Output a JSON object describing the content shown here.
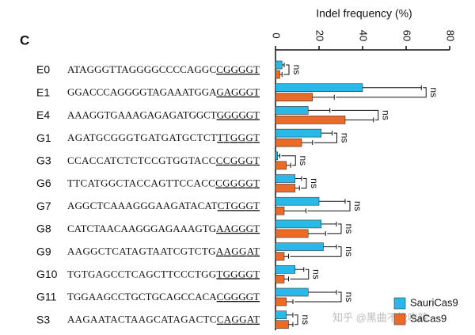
{
  "panel_label": "C",
  "watermark": "知乎 @黑曲不能吃辣",
  "chart_data": {
    "type": "bar",
    "orientation": "horizontal",
    "xlabel": "Indel frequency (%)",
    "categories": [
      "E0",
      "E1",
      "E4",
      "G1",
      "G3",
      "G6",
      "G7",
      "G8",
      "G9",
      "G10",
      "G11",
      "S3"
    ],
    "sequences": [
      "ATAGGGTTAGGGGCCCCAGGC",
      "GGACCCAGGGGTAGAAATGGA",
      "AAAGGTGAAAGAGAGATGGCT",
      "AGATGCGGGTGATGATGCTCT",
      "CCACCATCTCTCCGTGGTACC",
      "TTCATGGCTACCAGTTCCACC",
      "AGGCTCAAAGGGAAGATACAT",
      "CATCTAACAAGGGAGAAAGTG",
      "AAGGCTCATAGTAATCGTCTG",
      "TGTGAGCCTCAGCTTCCCTGG",
      "TGGAAGCCTGCTGCAGCCACA",
      "AAGAATACTAAGCATAGACTC"
    ],
    "pams": [
      "CGGGGT",
      "GAGGGT",
      "GGGGGT",
      "TTGGGT",
      "CCGGGT",
      "CGGGGT",
      "CTGGGT",
      "AAGGGT",
      "AAGGAT",
      "TGGGGT",
      "CGGGGT",
      "CAGGAT"
    ],
    "annotations": [
      "ns",
      "ns",
      "ns",
      "ns",
      "ns",
      "ns",
      "ns",
      "ns",
      "ns",
      "ns",
      "ns",
      "ns"
    ],
    "series": [
      {
        "name": "SauriCas9",
        "color": "#29b9e8",
        "values": [
          3,
          40,
          15,
          21,
          1,
          9,
          20,
          21,
          22,
          9,
          15,
          5
        ],
        "errors": [
          1,
          27,
          10,
          5,
          1,
          3,
          12,
          7,
          6,
          4,
          13,
          3
        ]
      },
      {
        "name": "SaCas9",
        "color": "#ea6a26",
        "values": [
          2,
          17,
          32,
          12,
          5,
          9,
          4,
          15,
          4,
          4,
          5,
          6
        ],
        "errors": [
          1,
          10,
          13,
          5,
          2,
          2,
          10,
          8,
          2,
          2,
          3,
          2
        ]
      }
    ],
    "xlim": [
      0,
      80
    ],
    "xticks": [
      0,
      20,
      40,
      60,
      80
    ]
  }
}
